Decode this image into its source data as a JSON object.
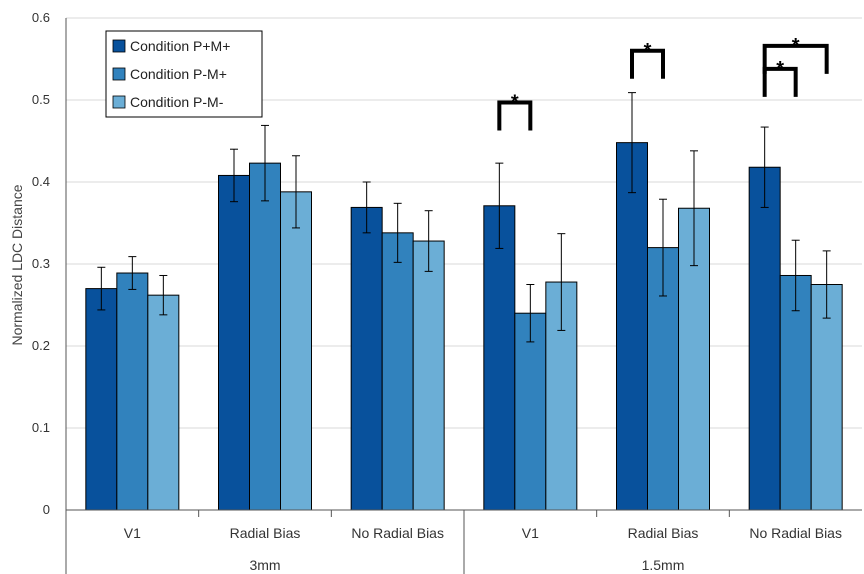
{
  "chart_data": {
    "type": "bar",
    "title": "",
    "ylabel": "Normalized LDC Distance",
    "xlabel": "",
    "ylim": [
      0,
      0.6
    ],
    "yticks": [
      "0",
      "0.1",
      "0.2",
      "0.3",
      "0.4",
      "0.5",
      "0.6"
    ],
    "grid": true,
    "legend_position": "top-left",
    "groups": [
      {
        "label": "3mm",
        "categories": [
          "V1",
          "Radial Bias",
          "No Radial Bias"
        ]
      },
      {
        "label": "1.5mm",
        "categories": [
          "V1",
          "Radial Bias",
          "No Radial Bias"
        ]
      }
    ],
    "categories": [
      "V1",
      "Radial Bias",
      "No Radial Bias",
      "V1",
      "Radial Bias",
      "No Radial Bias"
    ],
    "series": [
      {
        "name": "Condition P+M+",
        "color": "#08519c",
        "values": [
          0.27,
          0.408,
          0.369,
          0.371,
          0.448,
          0.418
        ],
        "errors": [
          0.026,
          0.032,
          0.031,
          0.052,
          0.061,
          0.049
        ]
      },
      {
        "name": "Condition P-M+",
        "color": "#3182bd",
        "values": [
          0.289,
          0.423,
          0.338,
          0.24,
          0.32,
          0.286
        ],
        "errors": [
          0.02,
          0.046,
          0.036,
          0.035,
          0.059,
          0.043
        ]
      },
      {
        "name": "Condition P-M-",
        "color": "#6baed6",
        "values": [
          0.262,
          0.388,
          0.328,
          0.278,
          0.368,
          0.275
        ],
        "errors": [
          0.024,
          0.044,
          0.037,
          0.059,
          0.07,
          0.041
        ]
      }
    ],
    "significance": [
      {
        "category_index": 3,
        "from_series": 0,
        "to_series": 1,
        "y": 0.497,
        "label": "*"
      },
      {
        "category_index": 4,
        "from_series": 0,
        "to_series": 1,
        "y": 0.56,
        "label": "*"
      },
      {
        "category_index": 5,
        "from_series": 0,
        "to_series": 1,
        "y": 0.538,
        "label": "*"
      },
      {
        "category_index": 5,
        "from_series": 0,
        "to_series": 2,
        "y": 0.566,
        "label": "*"
      }
    ]
  }
}
